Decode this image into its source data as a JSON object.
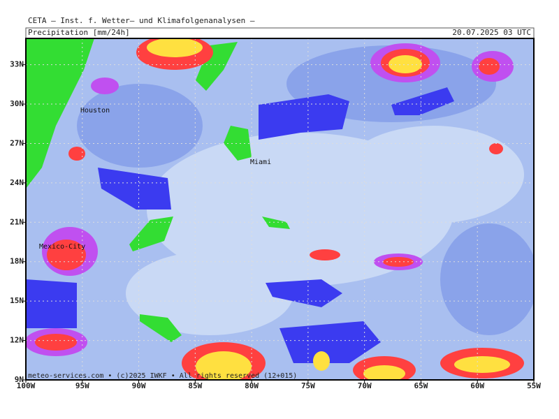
{
  "header": {
    "institute": "CETA – Inst. f. Wetter– und Klimafolgenanalysen –",
    "variable": "Precipitation [mm/24h]",
    "time": "20.07.2025 03 UTC"
  },
  "axes": {
    "lon_ticks": [
      {
        "value": -100,
        "label": "100W"
      },
      {
        "value": -95,
        "label": "95W"
      },
      {
        "value": -90,
        "label": "90W"
      },
      {
        "value": -85,
        "label": "85W"
      },
      {
        "value": -80,
        "label": "80W"
      },
      {
        "value": -75,
        "label": "75W"
      },
      {
        "value": -70,
        "label": "70W"
      },
      {
        "value": -65,
        "label": "65W"
      },
      {
        "value": -60,
        "label": "60W"
      },
      {
        "value": -55,
        "label": "55W"
      }
    ],
    "lat_ticks": [
      {
        "value": 9,
        "label": "9N"
      },
      {
        "value": 12,
        "label": "12N"
      },
      {
        "value": 15,
        "label": "15N"
      },
      {
        "value": 18,
        "label": "18N"
      },
      {
        "value": 21,
        "label": "21N"
      },
      {
        "value": 24,
        "label": "24N"
      },
      {
        "value": 27,
        "label": "27N"
      },
      {
        "value": 30,
        "label": "30N"
      },
      {
        "value": 33,
        "label": "33N"
      }
    ],
    "lonlim": [
      -100,
      -55
    ],
    "latlim": [
      9,
      35
    ]
  },
  "cities": [
    "Houston",
    "Miami",
    "Mexico-City"
  ],
  "footer": "meteo-services.com • (c)2025 IWKF • All rights reserved (12+015)"
}
